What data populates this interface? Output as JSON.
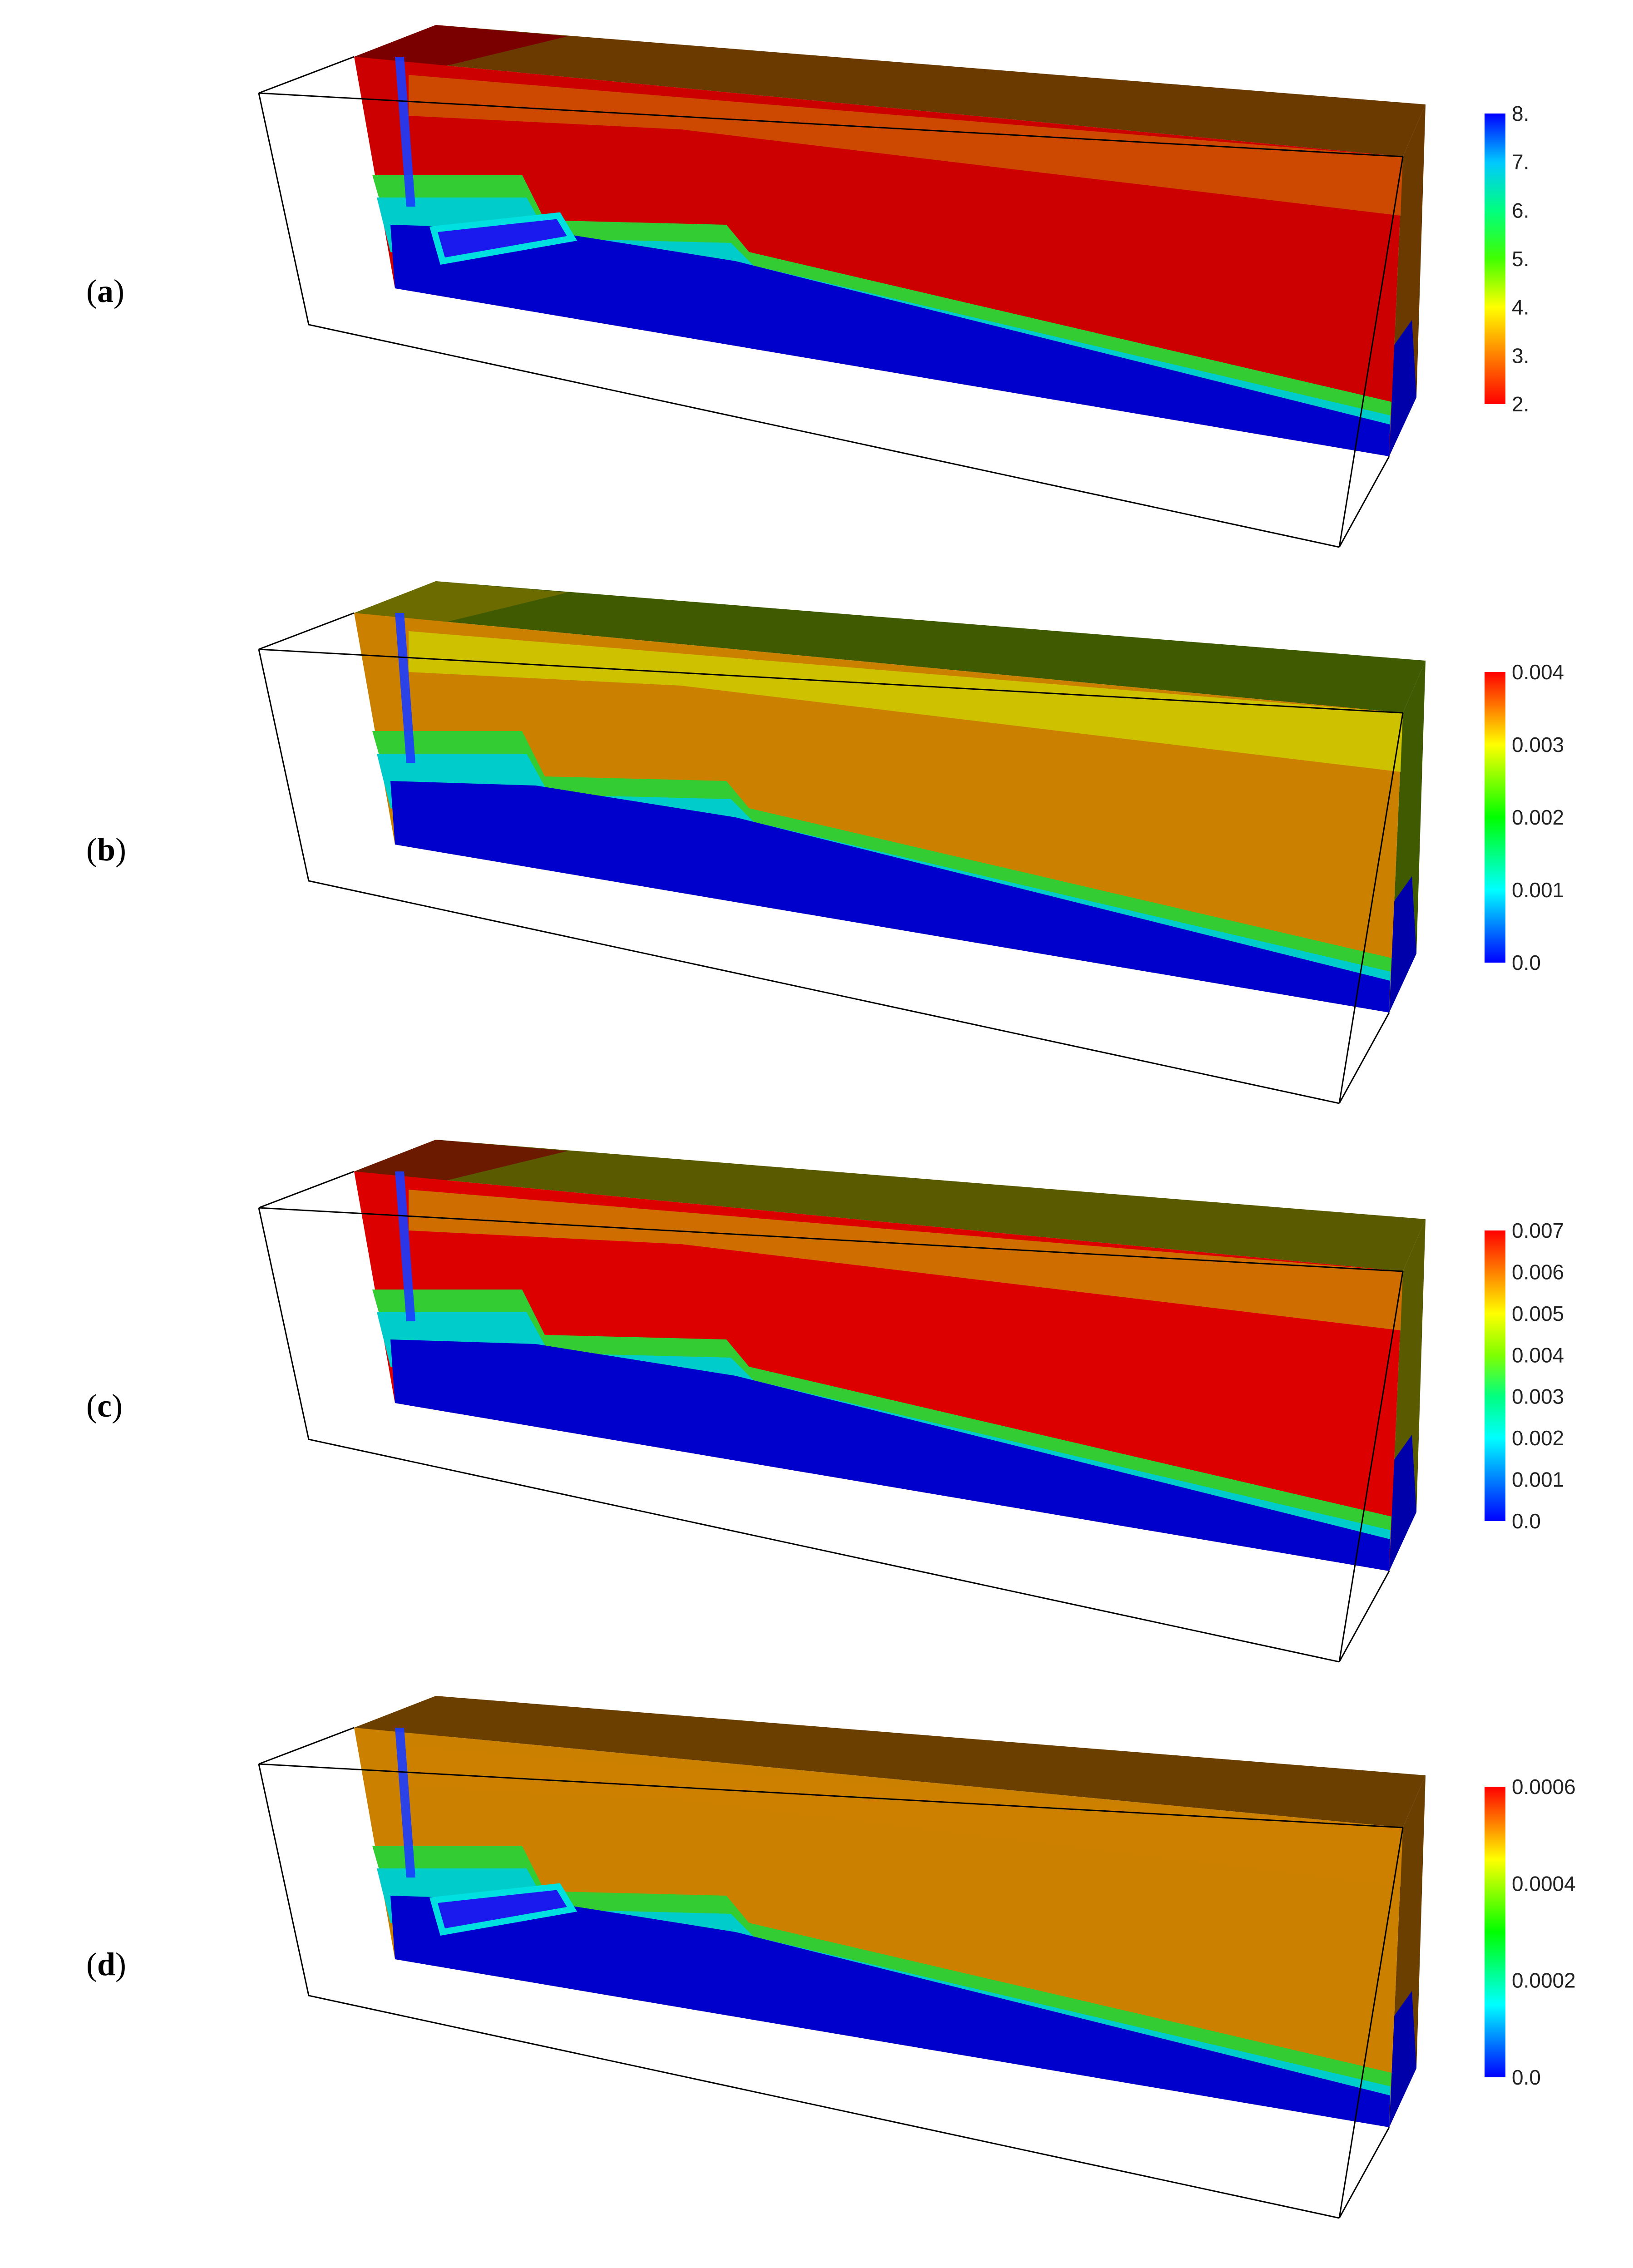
{
  "panels": [
    {
      "id": "a",
      "label_open": "(",
      "label_letter": "a",
      "label_close": ")",
      "colorbar": {
        "ticks": [
          "8.",
          "7.",
          "6.",
          "5.",
          "4.",
          "3.",
          "2."
        ],
        "colors": [
          "#0000ff",
          "#00c8ff",
          "#00ff80",
          "#40ff00",
          "#ffff00",
          "#ff8000",
          "#ff0000"
        ]
      },
      "field": {
        "front": "#cc0000",
        "top_left": "#7a0000",
        "top_right": "#6b3a00",
        "band": "#cc5500",
        "bottom": "#0000cc",
        "inclusion": true
      }
    },
    {
      "id": "b",
      "label_open": "(",
      "label_letter": "b",
      "label_close": ")",
      "colorbar": {
        "ticks": [
          "0.004",
          "0.003",
          "0.002",
          "0.001",
          "0.0"
        ],
        "colors": [
          "#ff0000",
          "#ffff00",
          "#00ff00",
          "#00ffff",
          "#0000ff"
        ]
      },
      "field": {
        "front": "#cc8000",
        "top_left": "#6b6b00",
        "top_right": "#3f5a00",
        "band": "#cccc00",
        "bottom": "#0000cc",
        "inclusion": false
      }
    },
    {
      "id": "c",
      "label_open": "(",
      "label_letter": "c",
      "label_close": ")",
      "colorbar": {
        "ticks": [
          "0.007",
          "0.006",
          "0.005",
          "0.004",
          "0.003",
          "0.002",
          "0.001",
          "0.0"
        ],
        "colors": [
          "#ff0000",
          "#ff8000",
          "#ffff00",
          "#80ff00",
          "#00ff80",
          "#00ffff",
          "#0080ff",
          "#0000ff"
        ]
      },
      "field": {
        "front": "#dd0000",
        "top_left": "#6b1a00",
        "top_right": "#5a5a00",
        "band": "#cc8000",
        "bottom": "#0000cc",
        "inclusion": false
      }
    },
    {
      "id": "d",
      "label_open": "(",
      "label_letter": "d",
      "label_close": ")",
      "colorbar": {
        "ticks": [
          "0.0006",
          "0.0004",
          "0.0002",
          "0.0"
        ],
        "colors": [
          "#ff0000",
          "#ffff00",
          "#00ff00",
          "#00ffff",
          "#0000ff"
        ]
      },
      "field": {
        "front": "#cc8000",
        "top_left": "#6b3f00",
        "top_right": "#6b3f00",
        "band": "#cc8000",
        "bottom": "#0000cc",
        "inclusion": true
      }
    }
  ]
}
